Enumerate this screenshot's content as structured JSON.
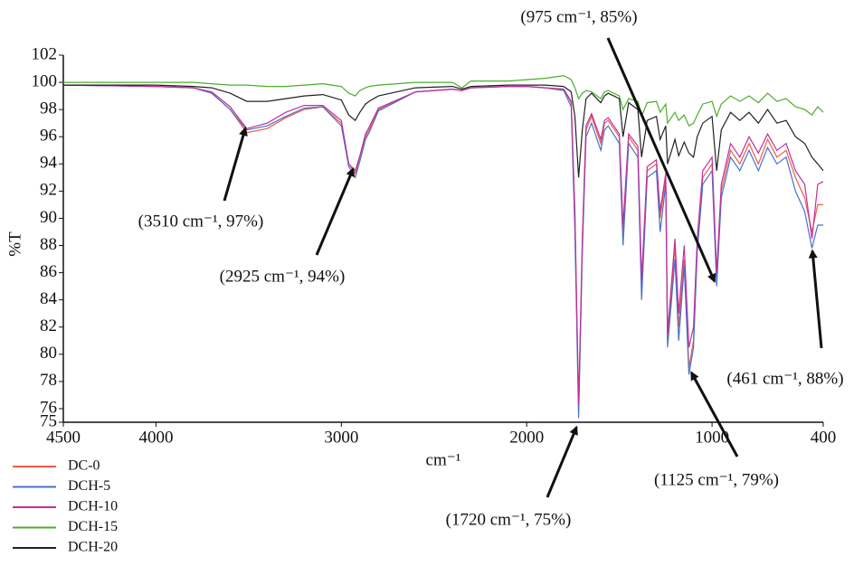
{
  "chart_data": {
    "type": "line",
    "x_label": "cm⁻¹",
    "y_label": "%T",
    "x": [
      4500,
      4000,
      3800,
      3700,
      3600,
      3510,
      3400,
      3300,
      3200,
      3100,
      3000,
      2960,
      2925,
      2900,
      2870,
      2850,
      2800,
      2600,
      2400,
      2350,
      2300,
      2100,
      2000,
      1900,
      1800,
      1760,
      1740,
      1720,
      1700,
      1680,
      1650,
      1600,
      1580,
      1560,
      1500,
      1480,
      1450,
      1400,
      1380,
      1350,
      1300,
      1280,
      1250,
      1240,
      1200,
      1180,
      1150,
      1125,
      1100,
      1080,
      1050,
      1000,
      975,
      950,
      900,
      850,
      800,
      750,
      700,
      650,
      600,
      550,
      500,
      461,
      430,
      400
    ],
    "series": [
      {
        "name": "DC-0",
        "color": "#ef5b45",
        "values": [
          99.8,
          99.7,
          99.6,
          99.2,
          98.0,
          96.3,
          96.6,
          97.4,
          98.0,
          98.2,
          97.0,
          94.0,
          93.3,
          94.5,
          96.0,
          96.5,
          98.0,
          99.3,
          99.5,
          99.4,
          99.6,
          99.7,
          99.7,
          99.6,
          99.5,
          98.5,
          90.0,
          76.0,
          88.0,
          96.5,
          97.5,
          95.5,
          97.0,
          97.2,
          96.0,
          89.0,
          96.0,
          95.0,
          85.0,
          93.5,
          94.0,
          90.0,
          93.0,
          81.0,
          88.0,
          82.0,
          87.0,
          79.0,
          81.0,
          88.0,
          93.0,
          94.0,
          85.5,
          92.0,
          95.0,
          94.0,
          95.5,
          94.0,
          95.8,
          94.5,
          95.0,
          93.0,
          91.5,
          89.0,
          91.0,
          91.0
        ]
      },
      {
        "name": "DCH-5",
        "color": "#4a72c8",
        "values": [
          99.8,
          99.7,
          99.6,
          99.2,
          98.0,
          96.5,
          96.8,
          97.5,
          98.1,
          98.2,
          96.8,
          93.8,
          93.0,
          94.2,
          95.8,
          96.3,
          97.9,
          99.3,
          99.5,
          99.4,
          99.6,
          99.7,
          99.7,
          99.6,
          99.4,
          98.2,
          89.0,
          75.3,
          87.5,
          96.0,
          97.0,
          95.0,
          96.5,
          96.8,
          95.5,
          88.0,
          95.5,
          94.5,
          84.0,
          93.0,
          93.5,
          89.0,
          92.5,
          80.5,
          87.0,
          81.0,
          86.5,
          78.5,
          80.5,
          87.5,
          92.5,
          93.5,
          85.0,
          91.5,
          94.5,
          93.5,
          95.0,
          93.5,
          95.2,
          94.0,
          94.5,
          92.0,
          90.5,
          87.8,
          89.5,
          89.5
        ]
      },
      {
        "name": "DCH-10",
        "color": "#c0309a",
        "values": [
          99.8,
          99.7,
          99.6,
          99.3,
          98.2,
          96.6,
          97.0,
          97.8,
          98.3,
          98.3,
          97.2,
          94.0,
          93.5,
          94.6,
          96.2,
          96.7,
          98.1,
          99.3,
          99.5,
          99.4,
          99.6,
          99.7,
          99.7,
          99.6,
          99.5,
          98.6,
          90.5,
          76.3,
          88.5,
          96.8,
          97.7,
          95.8,
          97.2,
          97.4,
          96.2,
          89.5,
          96.2,
          95.3,
          85.5,
          93.8,
          94.3,
          90.5,
          93.3,
          81.5,
          88.5,
          83.0,
          88.0,
          80.5,
          82.0,
          88.5,
          93.5,
          94.5,
          86.0,
          92.5,
          95.5,
          94.5,
          96.0,
          94.8,
          96.2,
          95.0,
          95.5,
          93.5,
          92.5,
          88.5,
          92.5,
          92.7
        ]
      },
      {
        "name": "DCH-15",
        "color": "#4cae2c",
        "values": [
          100.0,
          100.0,
          100.0,
          99.9,
          99.8,
          99.8,
          99.7,
          99.7,
          99.8,
          99.9,
          99.7,
          99.2,
          99.0,
          99.4,
          99.6,
          99.7,
          99.8,
          100.0,
          100.0,
          99.6,
          100.1,
          100.1,
          100.2,
          100.3,
          100.5,
          100.2,
          99.6,
          98.8,
          99.2,
          99.4,
          99.3,
          98.8,
          99.3,
          99.4,
          99.0,
          98.0,
          98.8,
          98.6,
          97.5,
          98.5,
          98.6,
          97.8,
          98.4,
          97.0,
          97.8,
          97.2,
          97.6,
          96.8,
          97.0,
          97.6,
          98.4,
          98.6,
          97.5,
          98.4,
          99.0,
          98.6,
          99.0,
          98.5,
          99.2,
          98.6,
          98.8,
          98.2,
          98.0,
          97.6,
          98.2,
          97.8
        ]
      },
      {
        "name": "DCH-20",
        "color": "#222222",
        "values": [
          99.8,
          99.8,
          99.7,
          99.6,
          99.2,
          98.6,
          98.6,
          98.8,
          99.0,
          99.1,
          98.7,
          97.6,
          97.2,
          97.8,
          98.4,
          98.6,
          99.0,
          99.6,
          99.7,
          99.5,
          99.7,
          99.8,
          99.8,
          99.8,
          99.7,
          99.3,
          97.5,
          93.0,
          96.5,
          98.8,
          99.2,
          98.5,
          99.0,
          99.2,
          98.8,
          96.0,
          98.5,
          98.0,
          94.5,
          97.2,
          97.5,
          95.8,
          96.8,
          94.0,
          95.8,
          94.6,
          95.6,
          94.8,
          94.5,
          96.0,
          97.0,
          97.5,
          93.5,
          96.5,
          97.8,
          97.2,
          97.8,
          97.0,
          98.0,
          97.0,
          97.2,
          96.0,
          95.5,
          94.5,
          94.0,
          93.5
        ]
      }
    ],
    "xlim": [
      4500,
      400
    ],
    "xticks": [
      4500,
      4000,
      3000,
      2000,
      1000,
      400
    ],
    "ylim": [
      75,
      102
    ],
    "yticks": [
      75,
      76,
      78,
      80,
      82,
      84,
      86,
      88,
      90,
      92,
      94,
      96,
      98,
      100,
      102
    ],
    "annotations": [
      {
        "text": "(3510 cm⁻¹, 97%)",
        "x": 3510,
        "y": 97
      },
      {
        "text": "(2925 cm⁻¹, 94%)",
        "x": 2925,
        "y": 94
      },
      {
        "text": "(1720 cm⁻¹, 75%)",
        "x": 1720,
        "y": 75
      },
      {
        "text": "(1125 cm⁻¹, 79%)",
        "x": 1125,
        "y": 79
      },
      {
        "text": "(975 cm⁻¹, 85%)",
        "x": 975,
        "y": 85
      },
      {
        "text": "(461 cm⁻¹, 88%)",
        "x": 461,
        "y": 88
      }
    ]
  }
}
